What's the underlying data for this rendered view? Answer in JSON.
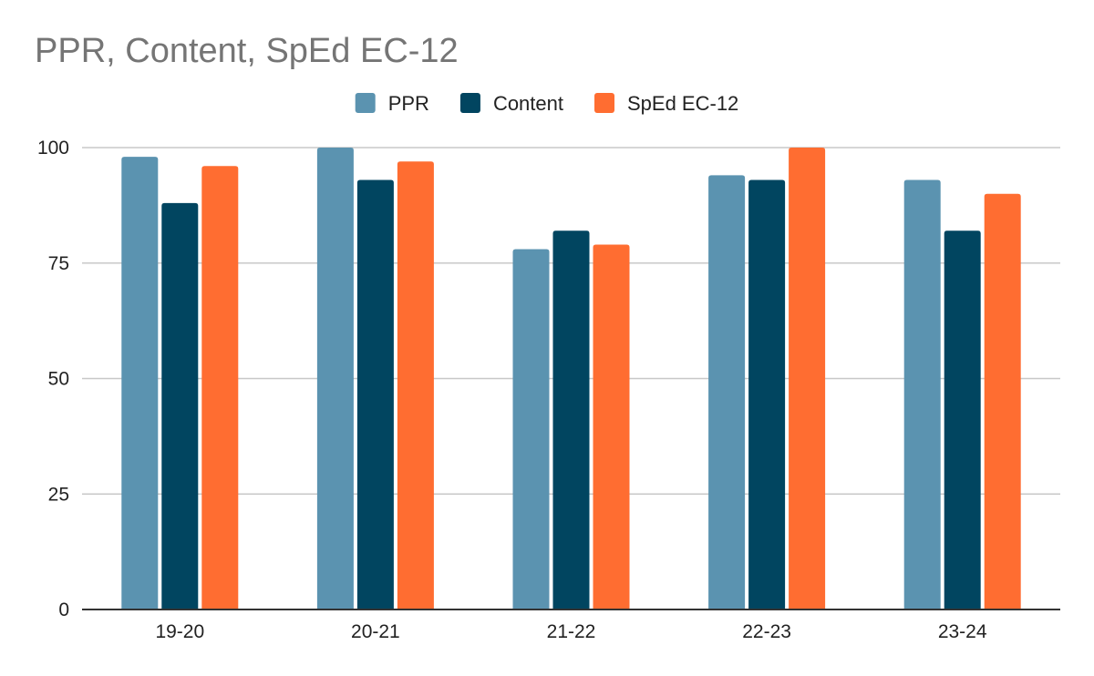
{
  "chart_data": {
    "type": "bar",
    "title": "PPR, Content, SpEd EC-12",
    "xlabel": "",
    "ylabel": "",
    "categories": [
      "19-20",
      "20-21",
      "21-22",
      "22-23",
      "23-24"
    ],
    "series": [
      {
        "name": "PPR",
        "color": "#5b93b0",
        "values": [
          98,
          100,
          78,
          94,
          93
        ]
      },
      {
        "name": "Content",
        "color": "#014560",
        "values": [
          88,
          93,
          82,
          93,
          82
        ]
      },
      {
        "name": "SpEd EC-12",
        "color": "#ff6d31",
        "values": [
          96,
          97,
          79,
          100,
          90
        ]
      }
    ],
    "ylim": [
      0,
      100
    ],
    "yticks": [
      "0",
      "25",
      "50",
      "75",
      "100"
    ],
    "grid": true,
    "legend_position": "top-center"
  }
}
